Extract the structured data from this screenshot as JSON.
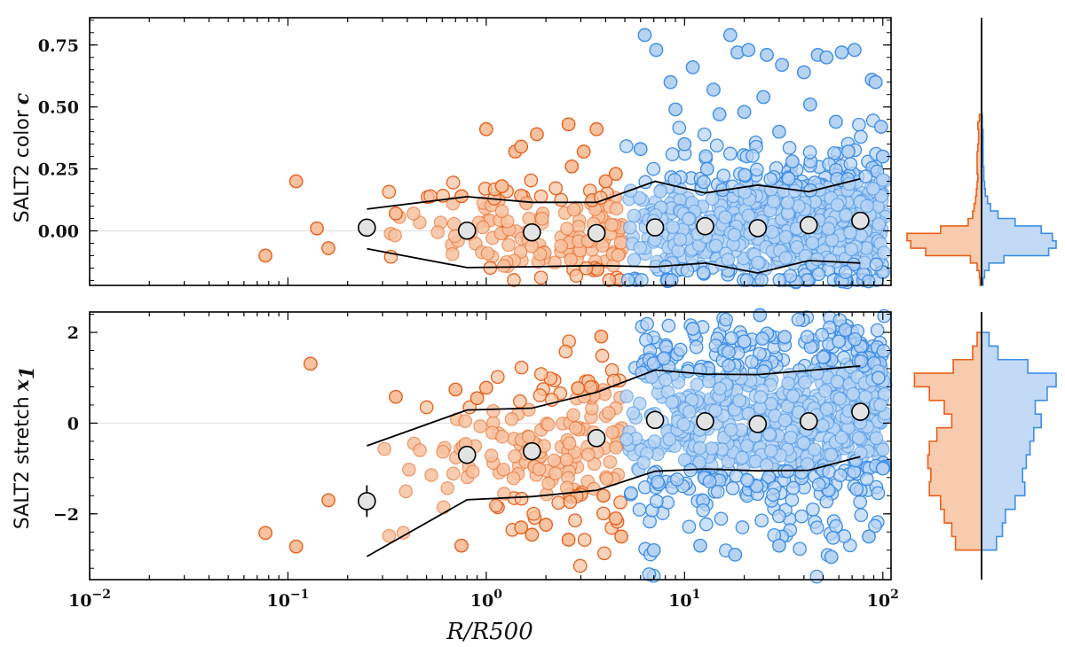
{
  "chart_data": {
    "type": "scatter",
    "xlabel": "R/R500",
    "xscale": "log",
    "xlim": [
      0.01,
      110
    ],
    "x_ticks": [
      {
        "v": 0.01,
        "base": "10",
        "exp": "−2"
      },
      {
        "v": 0.1,
        "base": "10",
        "exp": "−1"
      },
      {
        "v": 1,
        "base": "10",
        "exp": "0"
      },
      {
        "v": 10,
        "base": "10",
        "exp": "1"
      },
      {
        "v": 100,
        "base": "10",
        "exp": "2"
      }
    ],
    "colors": {
      "inner": "#e8601c",
      "inner_fill": "#f7c2a0",
      "outer": "#3d8ee8",
      "outer_fill": "#b7d3f3",
      "bin_fill": "#e2e4e4",
      "band": "#000000",
      "axis": "#000000",
      "zero_line": "#dddddd"
    },
    "panels": [
      {
        "name": "color",
        "ylabel_prefix": "SALT2 color",
        "ylabel_symbol": "c",
        "ylim": [
          -0.22,
          0.86
        ],
        "y_ticks": [
          {
            "v": 0.0,
            "label": "0.00"
          },
          {
            "v": 0.25,
            "label": "0.25"
          },
          {
            "v": 0.5,
            "label": "0.50"
          },
          {
            "v": 0.75,
            "label": "0.75"
          }
        ],
        "binned": {
          "x": [
            0.25,
            0.8,
            1.7,
            3.6,
            7.1,
            12.7,
            23.4,
            42.3,
            77.0
          ],
          "y": [
            0.013,
            0.001,
            -0.006,
            -0.009,
            0.014,
            0.019,
            0.011,
            0.023,
            0.041
          ],
          "err": [
            0,
            0,
            0,
            0,
            0,
            0,
            0,
            0,
            0
          ]
        },
        "band_upper": [
          0.088,
          0.138,
          0.115,
          0.115,
          0.2,
          0.153,
          0.185,
          0.158,
          0.21
        ],
        "band_lower": [
          -0.072,
          -0.148,
          -0.145,
          -0.14,
          -0.145,
          -0.13,
          -0.17,
          -0.12,
          -0.13
        ],
        "outliers_inner": [
          [
            0.077,
            -0.1
          ],
          [
            0.11,
            0.2
          ],
          [
            0.14,
            0.01
          ],
          [
            0.16,
            -0.07
          ],
          [
            1.0,
            0.41
          ],
          [
            1.4,
            0.32
          ],
          [
            1.5,
            0.34
          ],
          [
            1.8,
            0.39
          ],
          [
            2.6,
            0.43
          ],
          [
            3.1,
            0.32
          ],
          [
            3.6,
            0.41
          ],
          [
            2.7,
            0.26
          ],
          [
            1.2,
            0.18
          ],
          [
            0.75,
            0.14
          ],
          [
            4.5,
            0.23
          ],
          [
            0.35,
            0.07
          ],
          [
            4.0,
            0.2
          ]
        ],
        "outliers_outer": [
          [
            6.3,
            0.79
          ],
          [
            7.2,
            0.73
          ],
          [
            8.5,
            0.6
          ],
          [
            11.0,
            0.66
          ],
          [
            17.0,
            0.79
          ],
          [
            18.5,
            0.72
          ],
          [
            21.0,
            0.73
          ],
          [
            26.0,
            0.71
          ],
          [
            31.0,
            0.67
          ],
          [
            40.0,
            0.64
          ],
          [
            47.0,
            0.71
          ],
          [
            52.0,
            0.7
          ],
          [
            62.0,
            0.72
          ],
          [
            72.0,
            0.73
          ],
          [
            88.0,
            0.61
          ],
          [
            92.0,
            0.6
          ],
          [
            9.0,
            0.49
          ],
          [
            14.0,
            0.57
          ],
          [
            25.0,
            0.54
          ],
          [
            43.0,
            0.51
          ],
          [
            58.0,
            0.44
          ],
          [
            98.0,
            0.42
          ],
          [
            6.0,
            0.33
          ],
          [
            10.0,
            0.35
          ],
          [
            15.0,
            0.47
          ],
          [
            20.0,
            0.48
          ],
          [
            30.0,
            0.4
          ],
          [
            67.0,
            0.32
          ],
          [
            100.0,
            0.3
          ],
          [
            13.0,
            0.25
          ],
          [
            35.0,
            0.28
          ]
        ],
        "hist_edges": [
          -0.22,
          -0.19,
          -0.16,
          -0.13,
          -0.1,
          -0.07,
          -0.04,
          -0.01,
          0.02,
          0.05,
          0.08,
          0.11,
          0.14,
          0.17,
          0.2,
          0.23,
          0.26,
          0.29,
          0.32,
          0.35,
          0.38,
          0.41,
          0.44,
          0.47
        ],
        "hist_inner": [
          0.02,
          0.03,
          0.06,
          0.15,
          0.75,
          0.95,
          1.0,
          0.55,
          0.18,
          0.12,
          0.1,
          0.08,
          0.07,
          0.06,
          0.05,
          0.06,
          0.06,
          0.06,
          0.05,
          0.04,
          0.04,
          0.05,
          0.03
        ],
        "hist_outer": [
          0.02,
          0.04,
          0.1,
          0.3,
          0.9,
          1.0,
          0.95,
          0.8,
          0.45,
          0.22,
          0.12,
          0.08,
          0.05,
          0.04,
          0.03,
          0.03,
          0.02,
          0.02,
          0.02,
          0.02,
          0.02,
          0.01,
          0.01
        ]
      },
      {
        "name": "stretch",
        "ylabel_prefix": "SALT2 stretch",
        "ylabel_symbol": "x",
        "ylabel_sub": "1",
        "ylim": [
          -3.45,
          2.45
        ],
        "y_ticks": [
          {
            "v": -2,
            "label": "−2"
          },
          {
            "v": 0,
            "label": "0"
          },
          {
            "v": 2,
            "label": "2"
          }
        ],
        "binned": {
          "x": [
            0.25,
            0.8,
            1.7,
            3.6,
            7.1,
            12.7,
            23.4,
            42.3,
            77.0
          ],
          "y": [
            -1.72,
            -0.7,
            -0.62,
            -0.33,
            0.07,
            0.04,
            -0.02,
            0.04,
            0.25
          ],
          "err": [
            0.35,
            0.15,
            0.12,
            0.1,
            0.04,
            0.03,
            0.03,
            0.03,
            0.05
          ]
        },
        "band_upper": [
          -0.5,
          0.29,
          0.33,
          0.68,
          1.17,
          1.08,
          1.07,
          1.16,
          1.26
        ],
        "band_lower": [
          -2.94,
          -1.69,
          -1.62,
          -1.48,
          -1.06,
          -1.01,
          -1.05,
          -1.04,
          -0.74
        ],
        "outliers_inner": [
          [
            0.077,
            -2.42
          ],
          [
            0.11,
            -2.72
          ],
          [
            0.13,
            1.31
          ],
          [
            0.16,
            -1.7
          ],
          [
            0.35,
            0.58
          ],
          [
            0.75,
            -2.7
          ],
          [
            1.7,
            -2.46
          ],
          [
            2.0,
            -2.24
          ],
          [
            3.8,
            1.91
          ],
          [
            0.7,
            0.74
          ],
          [
            1.0,
            0.78
          ],
          [
            2.9,
            0.77
          ],
          [
            1.5,
            -2.3
          ],
          [
            2.6,
            -2.57
          ],
          [
            3.9,
            -1.6
          ],
          [
            4.5,
            -2.1
          ],
          [
            4.8,
            -2.5
          ],
          [
            0.9,
            0.55
          ]
        ],
        "outliers_outer": [
          [
            24.0,
            2.38
          ],
          [
            11.0,
            2.08
          ],
          [
            20.0,
            1.8
          ],
          [
            32.0,
            1.9
          ],
          [
            60.0,
            1.8
          ],
          [
            7.0,
            -2.8
          ],
          [
            12.0,
            -2.7
          ],
          [
            18.0,
            -2.9
          ],
          [
            30.0,
            -2.7
          ],
          [
            55.0,
            -2.95
          ],
          [
            85.0,
            -2.5
          ],
          [
            100.0,
            -1.0
          ],
          [
            95.0,
            1.0
          ]
        ],
        "hist_edges": [
          -2.8,
          -2.5,
          -2.2,
          -1.9,
          -1.6,
          -1.3,
          -1.0,
          -0.7,
          -0.4,
          -0.1,
          0.2,
          0.5,
          0.8,
          1.1,
          1.4,
          1.7,
          2.0
        ],
        "hist_inner": [
          0.35,
          0.4,
          0.5,
          0.55,
          0.7,
          0.68,
          0.72,
          0.7,
          0.6,
          0.4,
          0.5,
          0.7,
          0.9,
          0.38,
          0.12,
          0.06
        ],
        "hist_outer": [
          0.2,
          0.28,
          0.32,
          0.45,
          0.58,
          0.55,
          0.6,
          0.65,
          0.7,
          0.8,
          0.72,
          0.88,
          1.0,
          0.62,
          0.22,
          0.1
        ]
      }
    ]
  }
}
